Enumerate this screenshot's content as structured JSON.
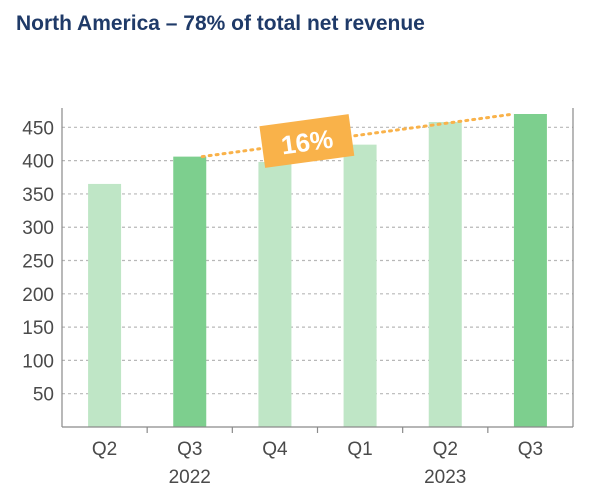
{
  "title": "North America – 78% of total net revenue",
  "colors": {
    "title": "#1f3a68",
    "bar_light": "#bfe6c6",
    "bar_dark": "#7dcf8e",
    "grid": "#b8b8b8",
    "axis": "#8a8a8a",
    "badge": "#f9b24a",
    "trend": "#f9b24a"
  },
  "chart_data": {
    "type": "bar",
    "title": "North America – 78% of total net revenue",
    "categories": [
      "Q2",
      "Q3",
      "Q4",
      "Q1",
      "Q2",
      "Q3"
    ],
    "year_labels": [
      "2022",
      "2023"
    ],
    "year_groups": [
      {
        "label": "2022",
        "category_index": 1
      },
      {
        "label": "2023",
        "category_index": 4
      }
    ],
    "values": [
      365,
      406,
      398,
      424,
      458,
      470
    ],
    "highlighted": [
      false,
      true,
      false,
      false,
      false,
      true
    ],
    "yticks": [
      50,
      100,
      150,
      200,
      250,
      300,
      350,
      400,
      450
    ],
    "ylim": [
      0,
      470
    ],
    "grid": true,
    "gridline_style": "dashed",
    "annotation": {
      "text": "16%",
      "from_index": 1,
      "to_index": 5
    }
  }
}
